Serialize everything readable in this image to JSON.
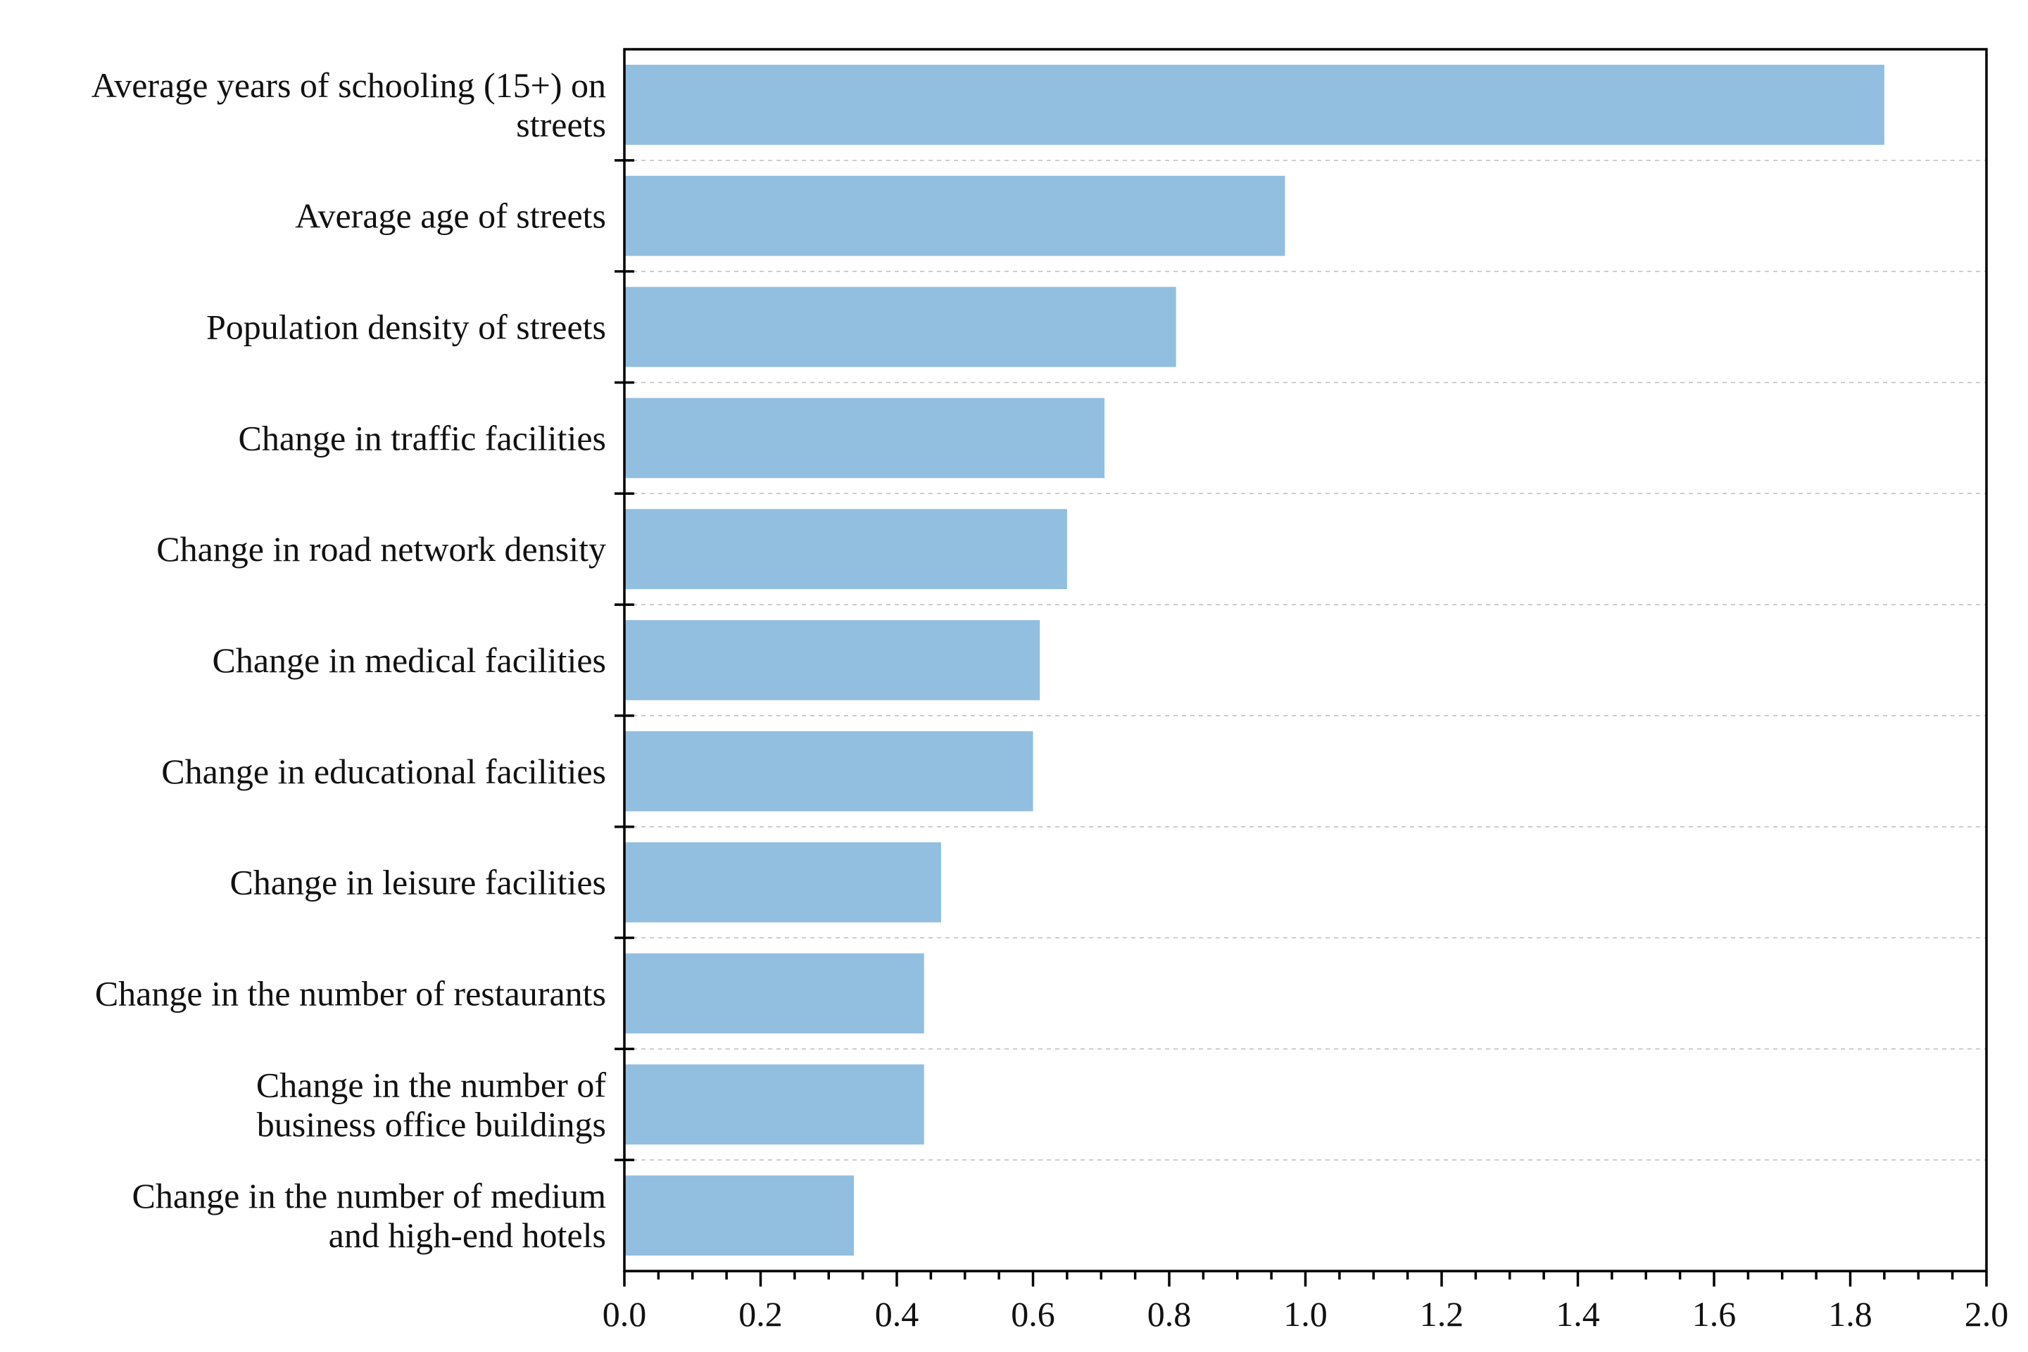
{
  "chart_data": {
    "type": "bar",
    "orientation": "horizontal",
    "title": "",
    "xlabel": "",
    "ylabel": "",
    "xlim": [
      0.0,
      2.0
    ],
    "x_ticks": [
      "0.0",
      "0.2",
      "0.4",
      "0.6",
      "0.8",
      "1.0",
      "1.2",
      "1.4",
      "1.6",
      "1.8",
      "2.0"
    ],
    "grid": "dashed horizontal separators between categories",
    "bar_color": "#92bee0",
    "categories": [
      [
        "Average years of schooling (15+) on",
        "streets"
      ],
      [
        "Average age of streets"
      ],
      [
        "Population density of streets"
      ],
      [
        "Change in traffic facilities"
      ],
      [
        "Change in road network density"
      ],
      [
        "Change in medical facilities"
      ],
      [
        "Change in educational facilities"
      ],
      [
        "Change in leisure facilities"
      ],
      [
        "Change in the number of restaurants"
      ],
      [
        "Change in the number of",
        "business office buildings"
      ],
      [
        "Change in the number of medium",
        "and high-end hotels"
      ]
    ],
    "values": [
      1.85,
      0.97,
      0.81,
      0.705,
      0.65,
      0.61,
      0.6,
      0.465,
      0.44,
      0.44,
      0.337
    ]
  }
}
